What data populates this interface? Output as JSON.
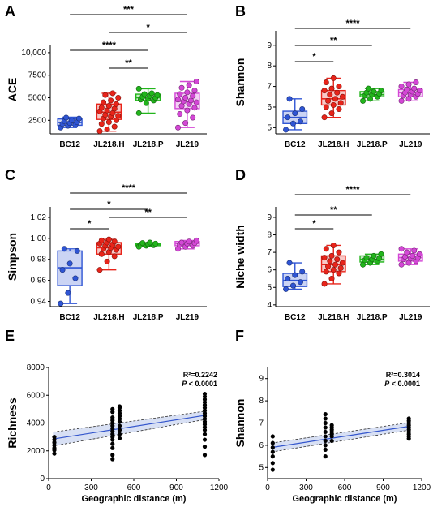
{
  "chart_data": [
    {
      "type": "box",
      "panel": "A",
      "ylabel": "ACE",
      "categories": [
        "BC12",
        "JL218.H",
        "JL218.P",
        "JL219"
      ],
      "yticks": [
        "2500",
        "5000",
        "7500",
        "10,000"
      ],
      "ytick_values": [
        2500,
        5000,
        7500,
        10000
      ],
      "ylim": [
        1000,
        10800
      ],
      "colors": [
        "#2f55d4",
        "#e8241a",
        "#22b51c",
        "#d447d6"
      ],
      "boxes": [
        {
          "whisker_low": 1700,
          "q1": 1950,
          "median": 2250,
          "q3": 2650,
          "whisker_high": 2850
        },
        {
          "whisker_low": 1300,
          "q1": 2600,
          "median": 3400,
          "q3": 4300,
          "whisker_high": 5500
        },
        {
          "whisker_low": 3300,
          "q1": 4700,
          "median": 5000,
          "q3": 5400,
          "whisker_high": 6000
        },
        {
          "whisker_low": 1700,
          "q1": 3800,
          "median": 4600,
          "q3": 5500,
          "whisker_high": 6800
        }
      ],
      "points": [
        [
          1700,
          1900,
          2000,
          2100,
          2200,
          2300,
          2400,
          2500,
          2700,
          2800
        ],
        [
          1300,
          1500,
          1800,
          2100,
          2300,
          2500,
          2700,
          2900,
          3000,
          3100,
          3300,
          3500,
          3600,
          3800,
          3900,
          4100,
          4300,
          4500,
          4700,
          5000,
          5300,
          5500
        ],
        [
          3300,
          4400,
          4700,
          4800,
          4900,
          5000,
          5100,
          5200,
          5300,
          5400,
          5500,
          6000
        ],
        [
          1700,
          2200,
          2800,
          3200,
          3600,
          3900,
          4100,
          4300,
          4500,
          4600,
          4700,
          4800,
          5000,
          5200,
          5400,
          5600,
          5800,
          6100,
          6400,
          6800
        ]
      ],
      "significance": [
        {
          "from": 0,
          "to": 3,
          "label": "***"
        },
        {
          "from": 1,
          "to": 3,
          "label": "*"
        },
        {
          "from": 0,
          "to": 2,
          "label": "****"
        },
        {
          "from": 1,
          "to": 2,
          "label": "**"
        }
      ]
    },
    {
      "type": "box",
      "panel": "B",
      "ylabel": "Shannon",
      "categories": [
        "BC12",
        "JL218.H",
        "JL218.P",
        "JL219"
      ],
      "yticks": [
        "5",
        "6",
        "7",
        "8",
        "9"
      ],
      "ytick_values": [
        5,
        6,
        7,
        8,
        9
      ],
      "ylim": [
        4.7,
        9.7
      ],
      "colors": [
        "#2f55d4",
        "#e8241a",
        "#22b51c",
        "#d447d6"
      ],
      "boxes": [
        {
          "whisker_low": 4.9,
          "q1": 5.2,
          "median": 5.5,
          "q3": 5.8,
          "whisker_high": 6.4
        },
        {
          "whisker_low": 5.5,
          "q1": 6.1,
          "median": 6.4,
          "q3": 6.8,
          "whisker_high": 7.4
        },
        {
          "whisker_low": 6.3,
          "q1": 6.5,
          "median": 6.6,
          "q3": 6.75,
          "whisker_high": 6.9
        },
        {
          "whisker_low": 6.3,
          "q1": 6.5,
          "median": 6.7,
          "q3": 6.85,
          "whisker_high": 7.2
        }
      ],
      "points": [
        [
          4.9,
          5.2,
          5.3,
          5.5,
          5.7,
          5.9,
          6.4
        ],
        [
          5.5,
          5.7,
          5.9,
          6.0,
          6.1,
          6.2,
          6.3,
          6.4,
          6.5,
          6.6,
          6.7,
          6.8,
          6.9,
          7.0,
          7.2,
          7.4
        ],
        [
          6.3,
          6.4,
          6.5,
          6.55,
          6.6,
          6.65,
          6.7,
          6.75,
          6.8,
          6.9
        ],
        [
          6.3,
          6.4,
          6.5,
          6.55,
          6.6,
          6.65,
          6.7,
          6.75,
          6.8,
          6.85,
          6.9,
          7.0,
          7.1,
          7.2
        ]
      ],
      "significance": [
        {
          "from": 0,
          "to": 3,
          "label": "****"
        },
        {
          "from": 0,
          "to": 2,
          "label": "**"
        },
        {
          "from": 0,
          "to": 1,
          "label": "*"
        }
      ]
    },
    {
      "type": "box",
      "panel": "C",
      "ylabel": "Simpson",
      "categories": [
        "BC12",
        "JL218.H",
        "JL218.P",
        "JL219"
      ],
      "yticks": [
        "0.94",
        "0.96",
        "0.98",
        "1.00",
        "1.02"
      ],
      "ytick_values": [
        0.94,
        0.96,
        0.98,
        1.0,
        1.02
      ],
      "ylim": [
        0.935,
        1.03
      ],
      "colors": [
        "#2f55d4",
        "#e8241a",
        "#22b51c",
        "#d447d6"
      ],
      "boxes": [
        {
          "whisker_low": 0.938,
          "q1": 0.955,
          "median": 0.972,
          "q3": 0.988,
          "whisker_high": 0.99
        },
        {
          "whisker_low": 0.97,
          "q1": 0.985,
          "median": 0.991,
          "q3": 0.996,
          "whisker_high": 0.999
        },
        {
          "whisker_low": 0.992,
          "q1": 0.993,
          "median": 0.994,
          "q3": 0.995,
          "whisker_high": 0.996
        },
        {
          "whisker_low": 0.99,
          "q1": 0.993,
          "median": 0.995,
          "q3": 0.997,
          "whisker_high": 0.998
        }
      ],
      "points": [
        [
          0.938,
          0.948,
          0.962,
          0.97,
          0.976,
          0.988,
          0.99
        ],
        [
          0.97,
          0.978,
          0.983,
          0.985,
          0.987,
          0.989,
          0.99,
          0.991,
          0.992,
          0.993,
          0.994,
          0.995,
          0.996,
          0.997,
          0.998,
          0.999
        ],
        [
          0.992,
          0.993,
          0.9935,
          0.994,
          0.9945,
          0.995,
          0.9955,
          0.996
        ],
        [
          0.99,
          0.992,
          0.993,
          0.994,
          0.995,
          0.9955,
          0.996,
          0.997,
          0.998
        ]
      ],
      "significance": [
        {
          "from": 0,
          "to": 3,
          "label": "****"
        },
        {
          "from": 0,
          "to": 2,
          "label": "*"
        },
        {
          "from": 1,
          "to": 3,
          "label": "**"
        },
        {
          "from": 0,
          "to": 1,
          "label": "*"
        }
      ]
    },
    {
      "type": "box",
      "panel": "D",
      "ylabel": "Niche width",
      "categories": [
        "BC12",
        "JL218.H",
        "JL218.P",
        "JL219"
      ],
      "yticks": [
        "4",
        "5",
        "6",
        "7",
        "8",
        "9"
      ],
      "ytick_values": [
        4,
        5,
        6,
        7,
        8,
        9
      ],
      "ylim": [
        3.9,
        9.6
      ],
      "colors": [
        "#2f55d4",
        "#e8241a",
        "#22b51c",
        "#d447d6"
      ],
      "boxes": [
        {
          "whisker_low": 4.9,
          "q1": 5.05,
          "median": 5.4,
          "q3": 5.8,
          "whisker_high": 6.4
        },
        {
          "whisker_low": 5.2,
          "q1": 5.9,
          "median": 6.3,
          "q3": 6.8,
          "whisker_high": 7.4
        },
        {
          "whisker_low": 6.3,
          "q1": 6.45,
          "median": 6.6,
          "q3": 6.8,
          "whisker_high": 6.9
        },
        {
          "whisker_low": 6.3,
          "q1": 6.5,
          "median": 6.7,
          "q3": 6.9,
          "whisker_high": 7.2
        }
      ],
      "points": [
        [
          4.9,
          5.1,
          5.3,
          5.5,
          5.7,
          5.9,
          6.4
        ],
        [
          5.2,
          5.5,
          5.8,
          5.9,
          6.0,
          6.1,
          6.2,
          6.3,
          6.4,
          6.5,
          6.6,
          6.7,
          6.8,
          7.0,
          7.2,
          7.4
        ],
        [
          6.3,
          6.4,
          6.5,
          6.55,
          6.6,
          6.65,
          6.7,
          6.8,
          6.9
        ],
        [
          6.3,
          6.4,
          6.5,
          6.6,
          6.65,
          6.7,
          6.75,
          6.8,
          6.9,
          7.0,
          7.1,
          7.2
        ]
      ],
      "significance": [
        {
          "from": 0,
          "to": 3,
          "label": "****"
        },
        {
          "from": 0,
          "to": 2,
          "label": "**"
        },
        {
          "from": 0,
          "to": 1,
          "label": "*"
        }
      ]
    },
    {
      "type": "scatter",
      "panel": "E",
      "xlabel": "Geographic distance (m)",
      "ylabel": "Richness",
      "xticks": [
        "0",
        "300",
        "600",
        "900",
        "1200"
      ],
      "xtick_values": [
        0,
        300,
        600,
        900,
        1200
      ],
      "yticks": [
        "0",
        "2000",
        "4000",
        "6000",
        "8000"
      ],
      "ytick_values": [
        0,
        2000,
        4000,
        6000,
        8000
      ],
      "xlim": [
        0,
        1200
      ],
      "ylim": [
        0,
        8000
      ],
      "r2_text": "R²=0.2242",
      "p_prefix": "P",
      "p_suffix": " < 0.0001",
      "fit": {
        "x": [
          30,
          1100
        ],
        "y": [
          2850,
          4550
        ],
        "ci_low": [
          2350,
          4250
        ],
        "ci_high": [
          3350,
          4850
        ]
      },
      "points": [
        [
          40,
          1800
        ],
        [
          40,
          2050
        ],
        [
          40,
          2200
        ],
        [
          40,
          2400
        ],
        [
          40,
          2600
        ],
        [
          40,
          2800
        ],
        [
          40,
          3000
        ],
        [
          450,
          1400
        ],
        [
          450,
          1700
        ],
        [
          450,
          2200
        ],
        [
          450,
          2500
        ],
        [
          450,
          2800
        ],
        [
          450,
          3000
        ],
        [
          450,
          3200
        ],
        [
          450,
          3400
        ],
        [
          450,
          3600
        ],
        [
          450,
          3800
        ],
        [
          450,
          4000
        ],
        [
          450,
          4200
        ],
        [
          450,
          4400
        ],
        [
          450,
          4800
        ],
        [
          450,
          5000
        ],
        [
          500,
          2900
        ],
        [
          500,
          3200
        ],
        [
          500,
          3500
        ],
        [
          500,
          3800
        ],
        [
          500,
          4100
        ],
        [
          500,
          4300
        ],
        [
          500,
          4500
        ],
        [
          500,
          4700
        ],
        [
          500,
          4900
        ],
        [
          500,
          5100
        ],
        [
          500,
          5200
        ],
        [
          1100,
          1700
        ],
        [
          1100,
          2300
        ],
        [
          1100,
          2800
        ],
        [
          1100,
          3200
        ],
        [
          1100,
          3500
        ],
        [
          1100,
          3700
        ],
        [
          1100,
          3900
        ],
        [
          1100,
          4100
        ],
        [
          1100,
          4300
        ],
        [
          1100,
          4500
        ],
        [
          1100,
          4700
        ],
        [
          1100,
          4900
        ],
        [
          1100,
          5100
        ],
        [
          1100,
          5300
        ],
        [
          1100,
          5500
        ],
        [
          1100,
          5700
        ],
        [
          1100,
          5900
        ],
        [
          1100,
          6100
        ]
      ]
    },
    {
      "type": "scatter",
      "panel": "F",
      "xlabel": "Geographic distance (m)",
      "ylabel": "Shannon",
      "xticks": [
        "0",
        "300",
        "600",
        "900",
        "1200"
      ],
      "xtick_values": [
        0,
        300,
        600,
        900,
        1200
      ],
      "yticks": [
        "5",
        "6",
        "7",
        "8",
        "9"
      ],
      "ytick_values": [
        5,
        6,
        7,
        8,
        9
      ],
      "xlim": [
        0,
        1200
      ],
      "ylim": [
        4.5,
        9.5
      ],
      "r2_text": "R²=0.3014",
      "p_prefix": "P",
      "p_suffix": " < 0.0001",
      "fit": {
        "x": [
          30,
          1100
        ],
        "y": [
          5.9,
          6.85
        ],
        "ci_low": [
          5.7,
          6.68
        ],
        "ci_high": [
          6.1,
          7.02
        ]
      },
      "points": [
        [
          40,
          4.9
        ],
        [
          40,
          5.2
        ],
        [
          40,
          5.5
        ],
        [
          40,
          5.7
        ],
        [
          40,
          5.9
        ],
        [
          40,
          6.1
        ],
        [
          40,
          6.4
        ],
        [
          450,
          5.5
        ],
        [
          450,
          5.8
        ],
        [
          450,
          6.0
        ],
        [
          450,
          6.2
        ],
        [
          450,
          6.4
        ],
        [
          450,
          6.6
        ],
        [
          450,
          6.8
        ],
        [
          450,
          7.0
        ],
        [
          450,
          7.2
        ],
        [
          450,
          7.4
        ],
        [
          500,
          6.2
        ],
        [
          500,
          6.4
        ],
        [
          500,
          6.5
        ],
        [
          500,
          6.6
        ],
        [
          500,
          6.7
        ],
        [
          500,
          6.8
        ],
        [
          500,
          6.9
        ],
        [
          1100,
          6.3
        ],
        [
          1100,
          6.4
        ],
        [
          1100,
          6.5
        ],
        [
          1100,
          6.6
        ],
        [
          1100,
          6.7
        ],
        [
          1100,
          6.8
        ],
        [
          1100,
          6.9
        ],
        [
          1100,
          7.0
        ],
        [
          1100,
          7.1
        ],
        [
          1100,
          7.2
        ]
      ]
    }
  ]
}
